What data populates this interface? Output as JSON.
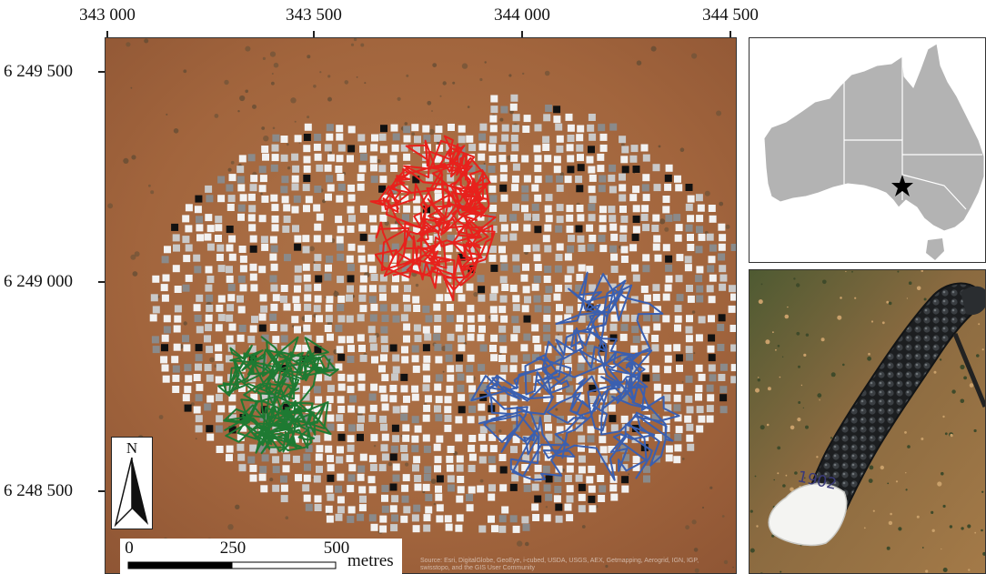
{
  "axes": {
    "x_ticks": [
      "343 000",
      "343 500",
      "344 000",
      "344 500"
    ],
    "y_ticks": [
      "6 249 500",
      "6 249 000",
      "6 248 500"
    ]
  },
  "north_arrow": {
    "letter": "N"
  },
  "scale_bar": {
    "labels": [
      "0",
      "250",
      "500"
    ],
    "unit": "metres"
  },
  "attribution": "Source: Esri, DigitalGlobe, GeoEye, i-cubed, USDA, USGS, AEX, Getmapping, Aerogrid, IGN, IGP, swisstopo, and the GIS User Community",
  "tracks": [
    {
      "color_name": "red",
      "color": "#e8211c"
    },
    {
      "color_name": "blue",
      "color": "#3a5fb0"
    },
    {
      "color_name": "green",
      "color": "#1e7a32"
    }
  ],
  "inset": {
    "marker": "star-icon",
    "land_color": "#b3b3b3"
  },
  "photo": {
    "tag_text": "1902"
  }
}
